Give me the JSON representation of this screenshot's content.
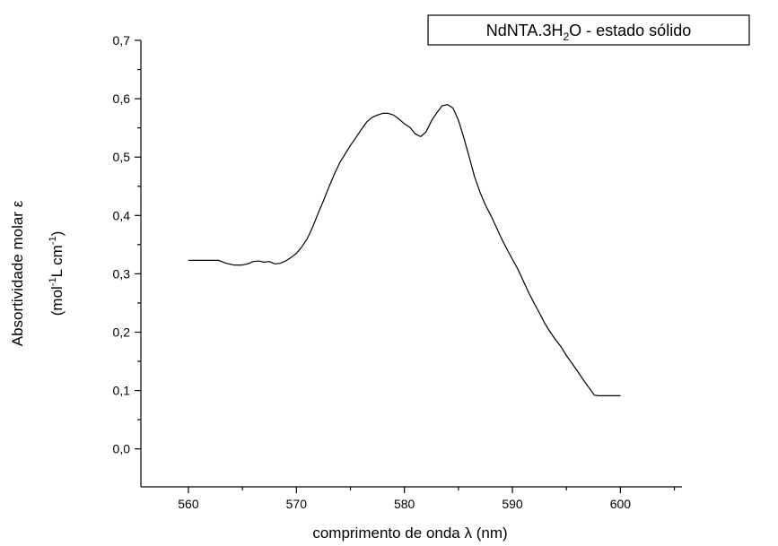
{
  "chart_data": {
    "type": "line",
    "legend": {
      "label_parts": [
        "NdNTA.3H",
        "2",
        "O - estado sólido"
      ],
      "placement": "top-right"
    },
    "xlabel": "comprimento de onda λ (nm)",
    "ylabel_line1": "Absortividade molar ε",
    "ylabel_line2_parts": [
      "(mol",
      "-1",
      "L cm",
      "-1",
      ")"
    ],
    "xlim": [
      555.6,
      605.7
    ],
    "ylim": [
      -0.065,
      0.7
    ],
    "x_ticks": [
      560,
      570,
      580,
      590,
      600
    ],
    "x_tick_labels": [
      "560",
      "570",
      "580",
      "590",
      "600"
    ],
    "x_minor_step": 5,
    "y_ticks": [
      0.0,
      0.1,
      0.2,
      0.3,
      0.4,
      0.5,
      0.6,
      0.7
    ],
    "y_tick_labels": [
      "0,0",
      "0,1",
      "0,2",
      "0,3",
      "0,4",
      "0,5",
      "0,6",
      "0,7"
    ],
    "y_minor_step": 0.05,
    "grid": false,
    "series": [
      {
        "color": "#000000",
        "x": [
          560,
          561,
          562,
          562.8,
          563.5,
          564.2,
          565,
          565.5,
          566,
          566.5,
          567,
          567.5,
          568,
          568.5,
          569,
          569.5,
          570,
          570.5,
          571,
          571.5,
          572,
          572.5,
          573,
          573.5,
          574,
          574.5,
          575,
          575.5,
          576,
          576.5,
          577,
          577.5,
          578,
          578.5,
          579,
          579.5,
          580,
          580.5,
          581,
          581.5,
          582,
          582.5,
          583,
          583.5,
          584,
          584.5,
          585,
          585.5,
          586,
          586.5,
          587,
          587.5,
          588,
          588.5,
          589,
          589.5,
          590,
          590.5,
          591,
          591.5,
          592,
          592.5,
          593,
          593.5,
          594,
          594.5,
          595,
          595.5,
          596,
          596.5,
          597,
          597.6,
          598,
          599,
          600
        ],
        "y": [
          0.323,
          0.323,
          0.323,
          0.323,
          0.318,
          0.315,
          0.315,
          0.317,
          0.321,
          0.322,
          0.32,
          0.321,
          0.317,
          0.318,
          0.322,
          0.328,
          0.335,
          0.346,
          0.36,
          0.38,
          0.403,
          0.425,
          0.448,
          0.47,
          0.49,
          0.505,
          0.52,
          0.533,
          0.547,
          0.56,
          0.568,
          0.572,
          0.575,
          0.575,
          0.572,
          0.565,
          0.557,
          0.551,
          0.54,
          0.535,
          0.543,
          0.562,
          0.576,
          0.588,
          0.59,
          0.584,
          0.563,
          0.533,
          0.5,
          0.466,
          0.44,
          0.418,
          0.4,
          0.38,
          0.36,
          0.342,
          0.325,
          0.308,
          0.288,
          0.268,
          0.25,
          0.233,
          0.215,
          0.2,
          0.187,
          0.175,
          0.16,
          0.147,
          0.134,
          0.12,
          0.107,
          0.092,
          0.091,
          0.091,
          0.091
        ]
      }
    ]
  }
}
